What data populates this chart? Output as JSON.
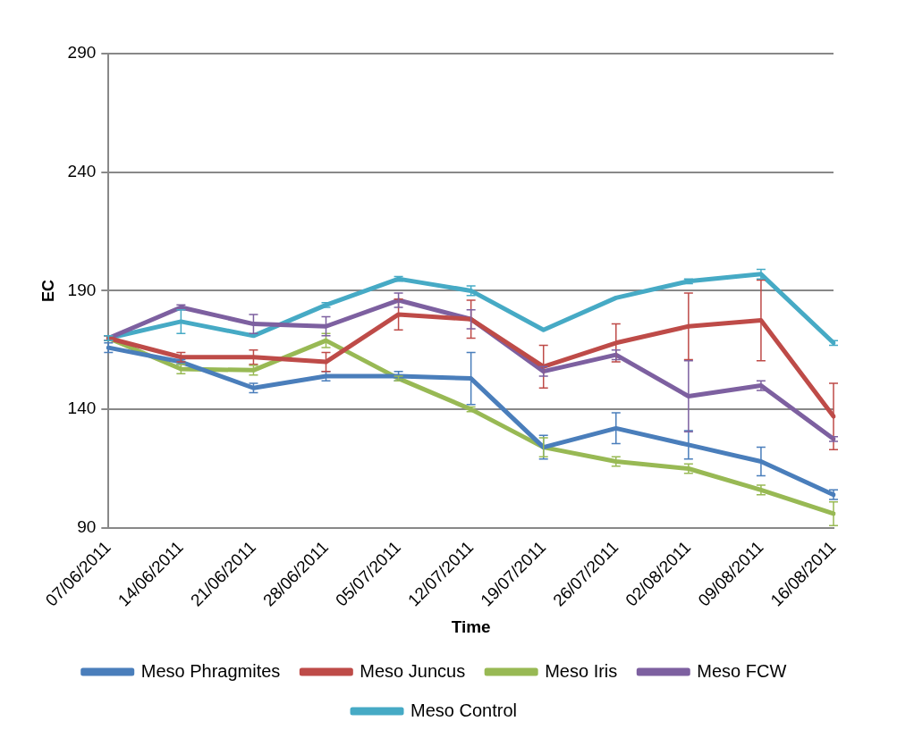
{
  "chart_data": {
    "type": "line",
    "xlabel": "Time",
    "ylabel": "EC",
    "categories": [
      "07/06/2011",
      "14/06/2011",
      "21/06/2011",
      "28/06/2011",
      "05/07/2011",
      "12/07/2011",
      "19/07/2011",
      "26/07/2011",
      "02/08/2011",
      "09/08/2011",
      "16/08/2011"
    ],
    "series": [
      {
        "name": "Meso Phragmites",
        "color": "#4a7ebb",
        "values": [
          166,
          160,
          149,
          154,
          154,
          153,
          124,
          132,
          125,
          118,
          104
        ],
        "errors": [
          2,
          1,
          2,
          2,
          2,
          11,
          5,
          6.5,
          6,
          6,
          2
        ]
      },
      {
        "name": "Meso Juncus",
        "color": "#be4b48",
        "values": [
          170,
          162,
          162,
          160,
          180,
          178,
          158,
          168,
          175,
          177.5,
          137
        ],
        "errors": [
          1,
          2,
          3,
          4,
          6.5,
          8,
          9,
          8,
          14,
          17,
          14
        ]
      },
      {
        "name": "Meso Iris",
        "color": "#98b954",
        "values": [
          170,
          157,
          156.5,
          169,
          153,
          140,
          124,
          118,
          115,
          106,
          96
        ],
        "errors": [
          1,
          2,
          2,
          3,
          1,
          1,
          4,
          2,
          2,
          2,
          5
        ]
      },
      {
        "name": "Meso FCW",
        "color": "#7d60a0",
        "values": [
          170,
          183,
          176,
          175,
          186,
          178,
          156,
          163,
          145.5,
          150,
          127.5
        ],
        "errors": [
          1,
          1,
          4,
          4,
          3,
          4,
          2,
          2,
          15,
          2,
          1
        ]
      },
      {
        "name": "Meso Control",
        "color": "#46aac5",
        "values": [
          170,
          177,
          171,
          184,
          195,
          190,
          173.5,
          187,
          194,
          197,
          168
        ],
        "errors": [
          1,
          5,
          null,
          1,
          1,
          2,
          null,
          null,
          1,
          2,
          1
        ]
      }
    ],
    "ylim": [
      90,
      290
    ],
    "yticks": [
      90,
      140,
      190,
      240,
      290
    ],
    "grid": "y",
    "legend": "bottom",
    "line_style": "solid"
  }
}
